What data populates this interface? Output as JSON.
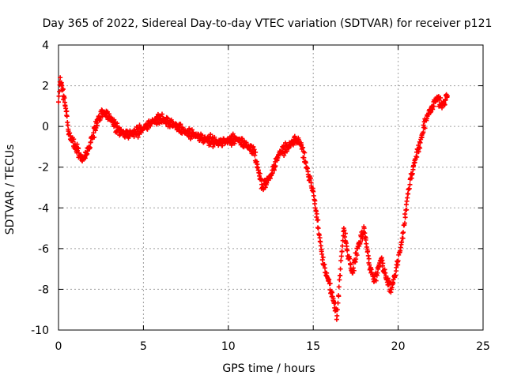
{
  "chart_data": {
    "type": "scatter",
    "title": "Day 365 of 2022, Sidereal Day-to-day VTEC variation (SDTVAR) for receiver p121",
    "xlabel": "GPS time / hours",
    "ylabel": "SDTVAR / TECUs",
    "xlim": [
      0,
      25
    ],
    "ylim": [
      -10,
      4
    ],
    "x_ticks": [
      0,
      5,
      10,
      15,
      20,
      25
    ],
    "y_ticks": [
      -10,
      -8,
      -6,
      -4,
      -2,
      0,
      2,
      4
    ],
    "x_tick_labels": [
      "0",
      "5",
      "10",
      "15",
      "20",
      "25"
    ],
    "y_tick_labels": [
      "-10",
      "-8",
      "-6",
      "-4",
      "-2",
      "0",
      "2",
      "4"
    ],
    "grid": true,
    "marker": "+",
    "color": "#ff0000",
    "series": [
      {
        "name": "p121",
        "x": [
          0.0,
          0.1,
          0.2,
          0.3,
          0.4,
          0.5,
          0.6,
          0.8,
          1.0,
          1.2,
          1.4,
          1.6,
          1.8,
          2.0,
          2.3,
          2.6,
          3.0,
          3.5,
          4.0,
          4.5,
          5.0,
          5.5,
          6.0,
          6.5,
          7.0,
          7.5,
          8.0,
          8.5,
          9.0,
          9.5,
          10.0,
          10.5,
          11.0,
          11.5,
          12.0,
          12.5,
          13.0,
          13.5,
          14.0,
          14.3,
          14.6,
          15.0,
          15.3,
          15.6,
          15.9,
          16.2,
          16.4,
          16.6,
          16.8,
          17.0,
          17.3,
          17.6,
          18.0,
          18.3,
          18.6,
          19.0,
          19.3,
          19.6,
          20.0,
          20.3,
          20.6,
          21.0,
          21.3,
          21.6,
          22.0,
          22.3,
          22.6,
          22.9
        ],
        "y": [
          1.2,
          2.4,
          2.0,
          1.5,
          1.0,
          0.5,
          -0.4,
          -0.7,
          -1.0,
          -1.3,
          -1.7,
          -1.4,
          -1.0,
          -0.5,
          0.3,
          0.7,
          0.5,
          -0.2,
          -0.4,
          -0.3,
          -0.1,
          0.2,
          0.4,
          0.2,
          0.0,
          -0.3,
          -0.4,
          -0.6,
          -0.7,
          -0.8,
          -0.7,
          -0.6,
          -0.9,
          -1.2,
          -3.0,
          -2.4,
          -1.3,
          -1.0,
          -0.6,
          -0.9,
          -2.0,
          -3.2,
          -5.0,
          -6.8,
          -7.6,
          -8.6,
          -9.3,
          -7.0,
          -5.0,
          -6.1,
          -7.2,
          -6.0,
          -5.0,
          -6.8,
          -7.6,
          -6.5,
          -7.5,
          -8.0,
          -6.6,
          -5.2,
          -3.1,
          -1.6,
          -0.8,
          0.3,
          1.0,
          1.4,
          1.0,
          1.5
        ]
      }
    ]
  }
}
